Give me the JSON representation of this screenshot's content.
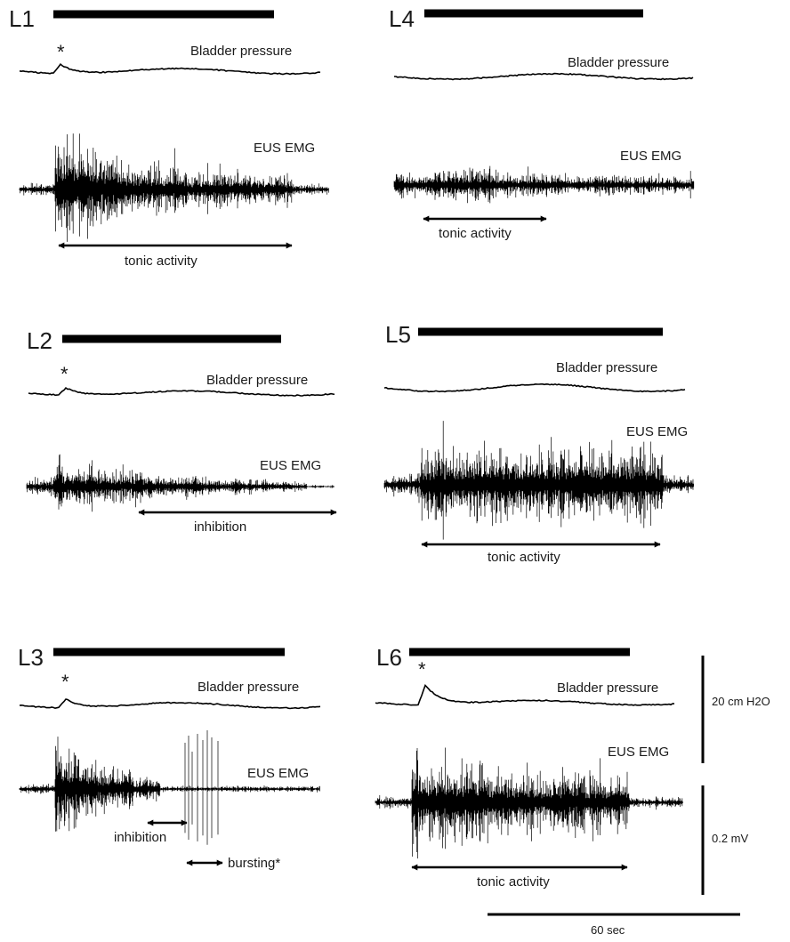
{
  "colors": {
    "ink": "#000000",
    "background": "#ffffff"
  },
  "panels": [
    {
      "id": "L1",
      "label": "L1",
      "pressure_label": "Bladder pressure",
      "emg_label": "EUS EMG",
      "has_asterisk": true,
      "annotations": [
        {
          "text": "tonic activity"
        }
      ]
    },
    {
      "id": "L2",
      "label": "L2",
      "pressure_label": "Bladder pressure",
      "emg_label": "EUS EMG",
      "has_asterisk": true,
      "annotations": [
        {
          "text": "inhibition"
        }
      ]
    },
    {
      "id": "L3",
      "label": "L3",
      "pressure_label": "Bladder pressure",
      "emg_label": "EUS EMG",
      "has_asterisk": true,
      "annotations": [
        {
          "text": "inhibition"
        },
        {
          "text": "bursting*"
        }
      ]
    },
    {
      "id": "L4",
      "label": "L4",
      "pressure_label": "Bladder pressure",
      "emg_label": "EUS EMG",
      "has_asterisk": false,
      "annotations": [
        {
          "text": "tonic activity"
        }
      ]
    },
    {
      "id": "L5",
      "label": "L5",
      "pressure_label": "Bladder pressure",
      "emg_label": "EUS EMG",
      "has_asterisk": false,
      "annotations": [
        {
          "text": "tonic activity"
        }
      ]
    },
    {
      "id": "L6",
      "label": "L6",
      "pressure_label": "Bladder pressure",
      "emg_label": "EUS EMG",
      "has_asterisk": true,
      "annotations": [
        {
          "text": "tonic activity"
        }
      ]
    }
  ],
  "scale_bars": {
    "pressure": "20 cm H2O",
    "voltage": "0.2 mV",
    "time": "60 sec"
  }
}
